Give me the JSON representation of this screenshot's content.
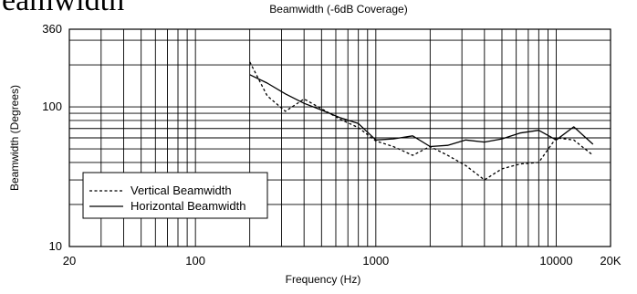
{
  "page": {
    "heading": "eamwidth"
  },
  "chart_data": {
    "type": "line",
    "title": "Beamwidth (-6dB Coverage)",
    "xlabel": "Frequency (Hz)",
    "ylabel": "Beamwidth (Degrees)",
    "x_scale": "log",
    "y_scale": "log",
    "xlim": [
      20,
      20000
    ],
    "ylim": [
      10,
      360
    ],
    "x_tick_labels": [
      {
        "value": 20,
        "label": "20"
      },
      {
        "value": 100,
        "label": "100"
      },
      {
        "value": 1000,
        "label": "1000"
      },
      {
        "value": 10000,
        "label": "10000"
      },
      {
        "value": 20000,
        "label": "20K"
      }
    ],
    "y_tick_labels": [
      {
        "value": 10,
        "label": "10"
      },
      {
        "value": 100,
        "label": "100"
      },
      {
        "value": 360,
        "label": "360"
      }
    ],
    "grid": true,
    "legend_position": "bottom-left",
    "series": [
      {
        "name": "Vertical Beamwidth",
        "style": "dashed",
        "x": [
          200,
          250,
          315,
          400,
          500,
          630,
          800,
          1000,
          1250,
          1600,
          2000,
          2500,
          3150,
          4000,
          5000,
          6300,
          8000,
          10000,
          12500,
          16000
        ],
        "y": [
          210,
          120,
          93,
          114,
          97,
          82,
          71,
          57,
          52,
          45,
          52,
          45,
          38,
          30,
          36,
          39,
          40,
          60,
          58,
          45
        ]
      },
      {
        "name": "Horizontal Beamwidth",
        "style": "solid",
        "x": [
          200,
          250,
          315,
          400,
          500,
          630,
          800,
          1000,
          1250,
          1600,
          2000,
          2500,
          3150,
          4000,
          5000,
          6300,
          8000,
          10000,
          12500,
          16000
        ],
        "y": [
          170,
          148,
          124,
          106,
          95,
          84,
          76,
          58,
          59,
          62,
          52,
          53,
          58,
          56,
          59,
          65,
          68,
          58,
          72,
          54
        ]
      }
    ]
  }
}
